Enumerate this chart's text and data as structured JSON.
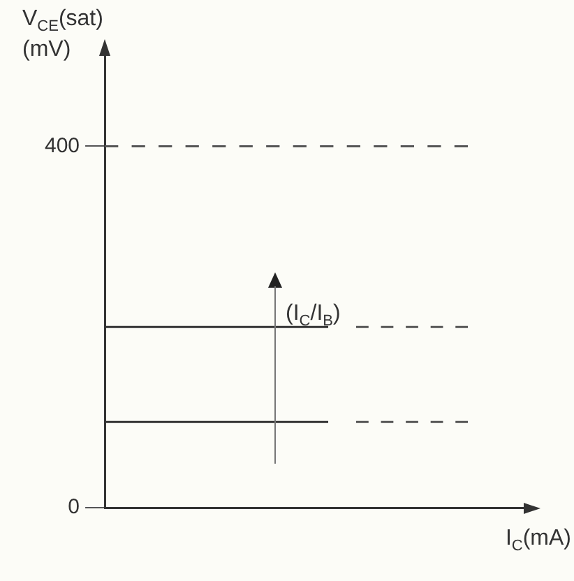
{
  "chart_data": {
    "type": "line",
    "xlabel": "I$_{C}$(mA)",
    "ylabel": "V$_{CE}$(sat)\n(mV)",
    "categories": [
      null,
      null,
      null,
      null,
      null,
      null,
      null,
      null,
      null,
      null,
      null,
      null,
      null,
      null,
      null,
      null
    ],
    "series": [
      {
        "color": "#555555",
        "line_style": "dashed",
        "values": [
          400,
          400,
          400,
          400,
          400,
          400,
          400,
          400,
          400,
          400,
          400,
          400,
          400,
          400,
          null,
          null
        ]
      },
      {
        "color": "#333333",
        "line_style": "solid",
        "values": [
          200,
          200,
          200,
          200,
          200,
          200,
          200,
          200,
          200,
          null,
          null,
          null,
          null,
          null,
          null,
          null
        ]
      },
      {
        "color": "#555555",
        "line_style": "dashed",
        "values": [
          null,
          null,
          null,
          null,
          null,
          null,
          null,
          null,
          null,
          200,
          200,
          200,
          200,
          200,
          null,
          null
        ]
      },
      {
        "color": "#333333",
        "line_style": "solid",
        "values": [
          95,
          95,
          95,
          95,
          95,
          95,
          95,
          95,
          95,
          null,
          null,
          null,
          null,
          null,
          null,
          null
        ]
      },
      {
        "color": "#555555",
        "line_style": "dashed",
        "values": [
          null,
          null,
          null,
          null,
          null,
          null,
          null,
          null,
          null,
          95,
          95,
          95,
          95,
          95,
          null,
          null
        ]
      }
    ],
    "ylim": [
      0,
      500
    ],
    "yticks": [
      0,
      400
    ],
    "grid": false,
    "legend": false,
    "marker": "none",
    "annotations": [
      "(I$_{C}$/I$_{B}$)"
    ]
  }
}
